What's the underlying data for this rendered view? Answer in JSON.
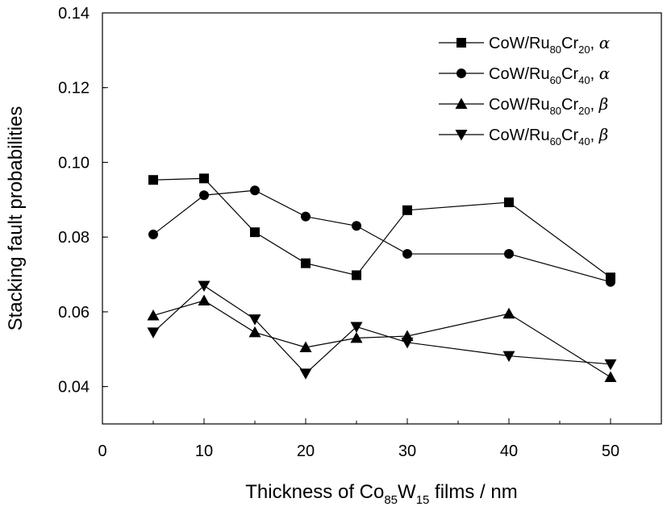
{
  "chart_data": {
    "type": "line",
    "xlabel": {
      "prefix": "Thickness of Co",
      "sub1": "85",
      "mid": "W",
      "sub2": "15",
      "suffix": " films / nm"
    },
    "ylabel": "Stacking fault probabilities",
    "xlim": [
      0,
      55
    ],
    "ylim": [
      0.03,
      0.14
    ],
    "xticks": [
      0,
      10,
      20,
      30,
      40,
      50
    ],
    "xtick_labels": [
      "0",
      "10",
      "20",
      "30",
      "40",
      "50"
    ],
    "yticks": [
      0.04,
      0.06,
      0.08,
      0.1,
      0.12,
      0.14
    ],
    "ytick_labels": [
      "0.04",
      "0.06",
      "0.08",
      "0.10",
      "0.12",
      "0.14"
    ],
    "grid": false,
    "legend_position": "top-right",
    "x": [
      5,
      10,
      15,
      20,
      25,
      30,
      40,
      50
    ],
    "series": [
      {
        "name": "CoW/Ru80Cr20, α",
        "label": {
          "base": "CoW/Ru",
          "s1": "80",
          "mid": "Cr",
          "s2": "20",
          "greek": "α"
        },
        "marker": "square",
        "values": [
          0.0953,
          0.0957,
          0.0813,
          0.073,
          0.0698,
          0.0872,
          0.0893,
          0.0692
        ]
      },
      {
        "name": "CoW/Ru60Cr40, α",
        "label": {
          "base": "CoW/Ru",
          "s1": "60",
          "mid": "Cr",
          "s2": "40",
          "greek": "α"
        },
        "marker": "circle",
        "values": [
          0.0807,
          0.0912,
          0.0925,
          0.0855,
          0.083,
          0.0755,
          0.0755,
          0.068
        ]
      },
      {
        "name": "CoW/Ru80Cr20, β",
        "label": {
          "base": "CoW/Ru",
          "s1": "80",
          "mid": "Cr",
          "s2": "20",
          "greek": "β"
        },
        "marker": "triangle-up",
        "values": [
          0.059,
          0.063,
          0.0545,
          0.0505,
          0.053,
          0.0535,
          0.0595,
          0.0425
        ]
      },
      {
        "name": "CoW/Ru60Cr40, β",
        "label": {
          "base": "CoW/Ru",
          "s1": "60",
          "mid": "Cr",
          "s2": "40",
          "greek": "β"
        },
        "marker": "triangle-down",
        "values": [
          0.0545,
          0.067,
          0.058,
          0.0435,
          0.056,
          0.0518,
          0.0482,
          0.046
        ]
      }
    ]
  },
  "colors": {
    "line": "#000000",
    "marker": "#000000",
    "background": "#ffffff"
  }
}
